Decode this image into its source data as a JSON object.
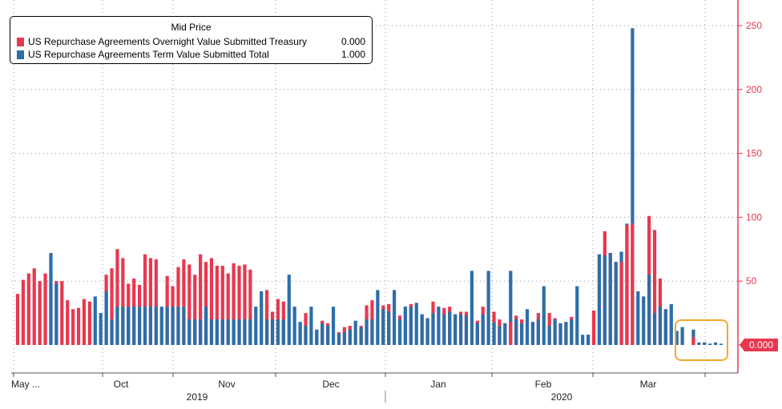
{
  "chart_data": {
    "type": "bar",
    "legend": {
      "title": "Mid Price",
      "position": "top-left",
      "entries": [
        {
          "name": "US Repurchase Agreements Overnight Value Submitted Treasury",
          "value": "0.000",
          "color": "#e8384f"
        },
        {
          "name": "US Repurchase Agreements Term Value Submitted Total",
          "value": "1.000",
          "color": "#2d6ea8"
        }
      ]
    },
    "y_axis": {
      "position": "right",
      "ticks": [
        "0",
        "50",
        "100",
        "150",
        "200",
        "250"
      ],
      "tick_values": [
        0,
        50,
        100,
        150,
        200,
        250
      ],
      "ylim": [
        -22,
        267
      ],
      "color": "#e8384f"
    },
    "x_axis": {
      "months": [
        "May ...",
        "Oct",
        "Nov",
        "Dec",
        "Jan",
        "Feb",
        "Mar"
      ],
      "years": [
        "2019",
        "2020"
      ]
    },
    "grid": true,
    "last_value": "0.000",
    "series": [
      {
        "name": "US Repurchase Agreements Overnight Value Submitted Treasury",
        "color": "#e8384f",
        "values": [
          40,
          51,
          56,
          60,
          50,
          56,
          0,
          50,
          50,
          35,
          28,
          29,
          36,
          34,
          0,
          0,
          55,
          60,
          75,
          68,
          48,
          52,
          47,
          71,
          68,
          67,
          0,
          54,
          46,
          61,
          67,
          63,
          55,
          71,
          65,
          68,
          62,
          62,
          56,
          64,
          62,
          63,
          59,
          0,
          0,
          43,
          26,
          36,
          34,
          0,
          0,
          18,
          25,
          0,
          12,
          19,
          17,
          0,
          10,
          14,
          15,
          0,
          15,
          31,
          35,
          0,
          31,
          32,
          0,
          23,
          30,
          32,
          0,
          24,
          21,
          34,
          0,
          29,
          30,
          24,
          26,
          26,
          0,
          19,
          30,
          0,
          26,
          20,
          17,
          18,
          23,
          20,
          0,
          18,
          25,
          0,
          25,
          21,
          17,
          18,
          22,
          0,
          0,
          8,
          27,
          0,
          89,
          72,
          65,
          65,
          94,
          95,
          0,
          0,
          101,
          90,
          52,
          28,
          0,
          0,
          0,
          0,
          6,
          0,
          2,
          1,
          0,
          0
        ]
      },
      {
        "name": "US Repurchase Agreements Term Value Submitted Total",
        "color": "#2d6ea8",
        "values": [
          0,
          0,
          0,
          0,
          0,
          0,
          72,
          48,
          0,
          0,
          0,
          0,
          0,
          0,
          38,
          25,
          42,
          20,
          30,
          30,
          30,
          30,
          30,
          30,
          30,
          30,
          30,
          30,
          30,
          30,
          30,
          20,
          20,
          20,
          30,
          20,
          20,
          20,
          20,
          20,
          20,
          20,
          20,
          30,
          42,
          20,
          20,
          20,
          20,
          55,
          30,
          18,
          15,
          30,
          12,
          17,
          15,
          30,
          9,
          10,
          12,
          19,
          14,
          20,
          20,
          43,
          28,
          26,
          43,
          20,
          30,
          30,
          33,
          24,
          21,
          25,
          30,
          24,
          26,
          24,
          24,
          23,
          58,
          17,
          24,
          58,
          18,
          15,
          17,
          58,
          20,
          17,
          28,
          18,
          20,
          46,
          15,
          20,
          17,
          18,
          20,
          46,
          8,
          8,
          0,
          71,
          70,
          72,
          65,
          73,
          95,
          248,
          42,
          38,
          55,
          25,
          30,
          28,
          32,
          11,
          14,
          0,
          12,
          2,
          2,
          1,
          2,
          1
        ]
      }
    ]
  }
}
